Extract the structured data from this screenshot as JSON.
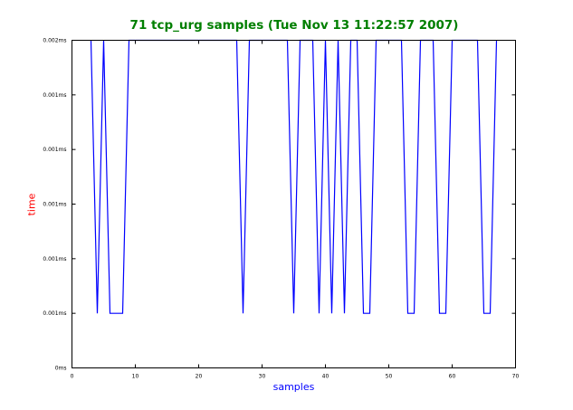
{
  "chart_data": {
    "type": "line",
    "title": "71 tcp_urg samples (Tue Nov 13 11:22:57 2007)",
    "xlabel": "samples",
    "ylabel": "time",
    "xlim": [
      0,
      70
    ],
    "ylim": [
      0,
      6
    ],
    "x_ticks": [
      "0",
      "10",
      "20",
      "30",
      "40",
      "50",
      "60",
      "70"
    ],
    "y_ticks": [
      "0ms",
      "0.001ms",
      "0.001ms",
      "0.001ms",
      "0.001ms",
      "0.001ms",
      "0.002ms"
    ],
    "grid": false,
    "colors": {
      "line": "#0000ff",
      "title": "#007f00",
      "xlabel": "#0000ff",
      "ylabel": "#ff0000"
    },
    "series": [
      {
        "x": [
          3,
          4,
          5,
          6,
          7,
          8,
          9,
          10,
          11,
          12,
          13,
          14,
          15,
          16,
          17,
          18,
          19,
          20,
          21,
          22,
          23,
          24,
          25,
          26,
          27,
          28,
          29,
          30,
          31,
          32,
          33,
          34,
          35,
          36,
          37,
          38,
          39,
          40,
          41,
          42,
          43,
          44,
          45,
          46,
          47,
          48,
          49,
          50,
          51,
          52,
          53,
          54,
          55,
          56,
          57,
          58,
          59,
          60,
          61,
          62,
          63,
          64,
          65,
          66,
          67
        ],
        "y": [
          6,
          1,
          6,
          1,
          1,
          1,
          6,
          6,
          6,
          6,
          6,
          6,
          6,
          6,
          6,
          6,
          6,
          6,
          6,
          6,
          6,
          6,
          6,
          6,
          1,
          6,
          6,
          6,
          6,
          6,
          6,
          6,
          1,
          6,
          6,
          6,
          1,
          6,
          1,
          6,
          1,
          6,
          6,
          1,
          1,
          6,
          6,
          6,
          6,
          6,
          1,
          1,
          6,
          6,
          6,
          1,
          1,
          6,
          6,
          6,
          6,
          6,
          1,
          1,
          6
        ]
      }
    ]
  }
}
